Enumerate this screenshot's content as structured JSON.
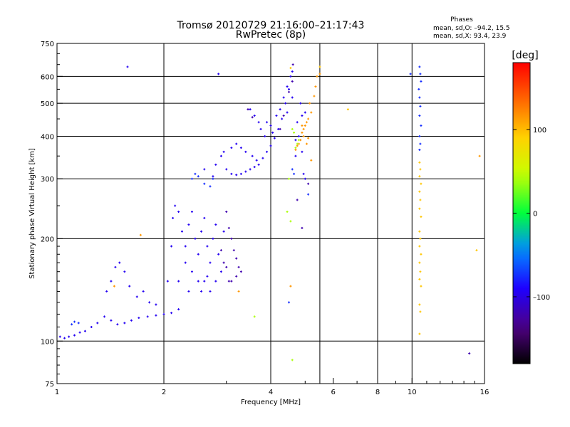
{
  "chart_data": {
    "type": "scatter",
    "title": "Tromsø 20120729 21:16:00–21:17:43",
    "subtitle": "RwPretec (8p)",
    "xlabel": "Frequency [MHz]",
    "ylabel": "Stationary phase Virtual Height [km]",
    "xscale": "log",
    "yscale": "log",
    "xlim": [
      1,
      16
    ],
    "ylim": [
      75,
      750
    ],
    "x_ticks": [
      1,
      2,
      4,
      6,
      8,
      10,
      16
    ],
    "x_tick_labels": [
      "1",
      "2",
      "4",
      "6",
      "8",
      "10",
      "16"
    ],
    "y_ticks": [
      75,
      100,
      200,
      300,
      400,
      500,
      600,
      750
    ],
    "y_tick_labels": [
      "75",
      "100",
      "200",
      "300",
      "400",
      "500",
      "600",
      "750"
    ],
    "grid_x": [
      2,
      4,
      5.5,
      8,
      10
    ],
    "grid_y": [
      100,
      200,
      300,
      400,
      500,
      600
    ],
    "phase_info": {
      "title": "Phases",
      "o_line": "mean, sd,O: –94.2, 15.5",
      "x_line": "mean, sd,X:  93.4, 23.9"
    },
    "colorbar": {
      "label": "[deg]",
      "min": -180,
      "max": 180,
      "ticks": [
        100,
        0,
        -100
      ],
      "tick_labels": [
        "100",
        "0",
        "–100"
      ]
    },
    "series": [
      {
        "name": "O-mode (blue)",
        "phase": -95,
        "points": [
          [
            1.02,
            103
          ],
          [
            1.05,
            102
          ],
          [
            1.08,
            103
          ],
          [
            1.12,
            104
          ],
          [
            1.16,
            106
          ],
          [
            1.2,
            107
          ],
          [
            1.25,
            110
          ],
          [
            1.3,
            113
          ],
          [
            1.36,
            118
          ],
          [
            1.42,
            115
          ],
          [
            1.48,
            112
          ],
          [
            1.55,
            113
          ],
          [
            1.62,
            115
          ],
          [
            1.7,
            117
          ],
          [
            1.8,
            118
          ],
          [
            1.9,
            119
          ],
          [
            2.0,
            120
          ],
          [
            2.1,
            121
          ],
          [
            2.2,
            124
          ],
          [
            1.38,
            140
          ],
          [
            1.42,
            150
          ],
          [
            1.46,
            165
          ],
          [
            1.5,
            170
          ],
          [
            1.55,
            160
          ],
          [
            1.6,
            145
          ],
          [
            1.68,
            135
          ],
          [
            1.75,
            140
          ],
          [
            1.82,
            130
          ],
          [
            1.9,
            128
          ],
          [
            2.05,
            150
          ],
          [
            2.1,
            190
          ],
          [
            2.12,
            230
          ],
          [
            2.15,
            250
          ],
          [
            2.2,
            240
          ],
          [
            2.25,
            210
          ],
          [
            2.3,
            190
          ],
          [
            2.35,
            220
          ],
          [
            2.4,
            240
          ],
          [
            2.45,
            200
          ],
          [
            2.5,
            180
          ],
          [
            2.55,
            210
          ],
          [
            2.6,
            230
          ],
          [
            2.65,
            190
          ],
          [
            2.7,
            170
          ],
          [
            2.75,
            200
          ],
          [
            2.8,
            220
          ],
          [
            2.85,
            180
          ],
          [
            2.9,
            160
          ],
          [
            2.95,
            210
          ],
          [
            2.3,
            170
          ],
          [
            2.4,
            160
          ],
          [
            2.5,
            150
          ],
          [
            2.6,
            150
          ],
          [
            2.7,
            140
          ],
          [
            2.2,
            150
          ],
          [
            2.35,
            140
          ],
          [
            2.55,
            140
          ],
          [
            2.65,
            155
          ],
          [
            2.8,
            150
          ],
          [
            2.75,
            305
          ],
          [
            2.8,
            330
          ],
          [
            2.9,
            350
          ],
          [
            3.0,
            320
          ],
          [
            3.1,
            310
          ],
          [
            3.2,
            308
          ],
          [
            3.3,
            310
          ],
          [
            3.4,
            315
          ],
          [
            3.5,
            320
          ],
          [
            3.6,
            325
          ],
          [
            3.7,
            330
          ],
          [
            3.8,
            345
          ],
          [
            3.9,
            360
          ],
          [
            4.0,
            375
          ],
          [
            4.1,
            395
          ],
          [
            4.2,
            420
          ],
          [
            4.3,
            450
          ],
          [
            4.4,
            500
          ],
          [
            4.5,
            550
          ],
          [
            4.55,
            600
          ],
          [
            3.5,
            480
          ],
          [
            3.6,
            460
          ],
          [
            3.7,
            440
          ],
          [
            3.75,
            420
          ],
          [
            3.9,
            440
          ],
          [
            4.0,
            430
          ],
          [
            4.15,
            460
          ],
          [
            4.25,
            480
          ],
          [
            4.35,
            520
          ],
          [
            3.3,
            370
          ],
          [
            3.4,
            360
          ],
          [
            3.55,
            350
          ],
          [
            3.65,
            340
          ],
          [
            3.85,
            400
          ],
          [
            4.05,
            410
          ],
          [
            4.45,
            560
          ],
          [
            4.6,
            620
          ],
          [
            4.45,
            470
          ],
          [
            4.7,
            390
          ],
          [
            4.8,
            400
          ],
          [
            4.9,
            460
          ],
          [
            4.75,
            440
          ],
          [
            4.85,
            500
          ],
          [
            5.0,
            470
          ],
          [
            4.6,
            520
          ],
          [
            3.2,
            380
          ],
          [
            3.1,
            370
          ],
          [
            2.95,
            360
          ],
          [
            1.58,
            640
          ],
          [
            2.85,
            610
          ],
          [
            2.6,
            320
          ],
          [
            4.9,
            360
          ],
          [
            4.7,
            350
          ],
          [
            4.95,
            310
          ],
          [
            5.0,
            300
          ]
        ]
      },
      {
        "name": "O-mode (dark violet)",
        "phase": -120,
        "points": [
          [
            3.0,
            240
          ],
          [
            3.05,
            215
          ],
          [
            3.1,
            200
          ],
          [
            3.15,
            185
          ],
          [
            3.2,
            175
          ],
          [
            3.25,
            165
          ],
          [
            3.3,
            160
          ],
          [
            3.1,
            150
          ],
          [
            3.2,
            155
          ],
          [
            2.9,
            185
          ],
          [
            2.95,
            170
          ],
          [
            3.0,
            165
          ],
          [
            3.05,
            150
          ],
          [
            3.45,
            480
          ],
          [
            3.55,
            455
          ],
          [
            4.35,
            460
          ],
          [
            4.25,
            420
          ],
          [
            4.5,
            540
          ],
          [
            4.6,
            580
          ],
          [
            4.62,
            650
          ],
          [
            4.75,
            260
          ],
          [
            4.9,
            215
          ],
          [
            5.1,
            290
          ],
          [
            14.5,
            92
          ]
        ]
      },
      {
        "name": "O-mode (light blue)",
        "phase": -75,
        "points": [
          [
            1.1,
            112
          ],
          [
            1.12,
            114
          ],
          [
            1.15,
            113
          ],
          [
            2.4,
            300
          ],
          [
            2.45,
            310
          ],
          [
            2.5,
            305
          ],
          [
            2.6,
            290
          ],
          [
            2.7,
            285
          ],
          [
            2.75,
            300
          ],
          [
            4.6,
            320
          ],
          [
            4.65,
            310
          ],
          [
            4.5,
            130
          ],
          [
            10.5,
            640
          ],
          [
            10.55,
            610
          ],
          [
            10.6,
            580
          ],
          [
            10.45,
            550
          ],
          [
            10.5,
            520
          ],
          [
            10.55,
            490
          ],
          [
            10.5,
            460
          ],
          [
            10.6,
            430
          ],
          [
            10.5,
            400
          ],
          [
            10.55,
            380
          ],
          [
            10.5,
            365
          ],
          [
            9.9,
            610
          ],
          [
            5.1,
            270
          ]
        ]
      },
      {
        "name": "X-mode (orange)",
        "phase": 95,
        "points": [
          [
            10.5,
            335
          ],
          [
            10.55,
            320
          ],
          [
            10.5,
            305
          ],
          [
            10.6,
            290
          ],
          [
            10.5,
            275
          ],
          [
            10.55,
            260
          ],
          [
            10.5,
            245
          ],
          [
            10.6,
            232
          ],
          [
            10.5,
            210
          ],
          [
            10.55,
            200
          ],
          [
            10.5,
            190
          ],
          [
            10.6,
            180
          ],
          [
            10.5,
            170
          ],
          [
            10.55,
            160
          ],
          [
            10.5,
            152
          ],
          [
            10.6,
            145
          ],
          [
            10.5,
            128
          ],
          [
            10.55,
            122
          ],
          [
            10.5,
            105
          ],
          [
            6.6,
            480
          ],
          [
            15.2,
            185
          ],
          [
            4.55,
            635
          ],
          [
            5.5,
            640
          ]
        ]
      },
      {
        "name": "X-mode (yellow)",
        "phase": 115,
        "points": [
          [
            4.8,
            380
          ],
          [
            4.85,
            390
          ],
          [
            4.9,
            410
          ],
          [
            4.95,
            420
          ],
          [
            5.0,
            430
          ],
          [
            5.05,
            440
          ],
          [
            5.1,
            450
          ],
          [
            5.2,
            470
          ],
          [
            5.15,
            500
          ],
          [
            5.3,
            525
          ],
          [
            5.35,
            560
          ],
          [
            5.4,
            600
          ],
          [
            5.5,
            610
          ],
          [
            4.7,
            365
          ],
          [
            4.75,
            375
          ],
          [
            4.95,
            400
          ],
          [
            5.05,
            380
          ],
          [
            5.1,
            395
          ],
          [
            1.72,
            205
          ],
          [
            1.45,
            145
          ],
          [
            3.25,
            140
          ],
          [
            4.55,
            145
          ],
          [
            15.5,
            350
          ],
          [
            5.2,
            340
          ],
          [
            4.9,
            430
          ]
        ]
      },
      {
        "name": "X-mode (green)",
        "phase": 40,
        "points": [
          [
            4.7,
            370
          ],
          [
            4.75,
            380
          ],
          [
            4.8,
            390
          ],
          [
            4.6,
            420
          ],
          [
            4.65,
            410
          ],
          [
            3.6,
            118
          ],
          [
            4.6,
            88
          ],
          [
            4.45,
            240
          ],
          [
            4.5,
            300
          ],
          [
            4.55,
            225
          ]
        ]
      }
    ]
  }
}
